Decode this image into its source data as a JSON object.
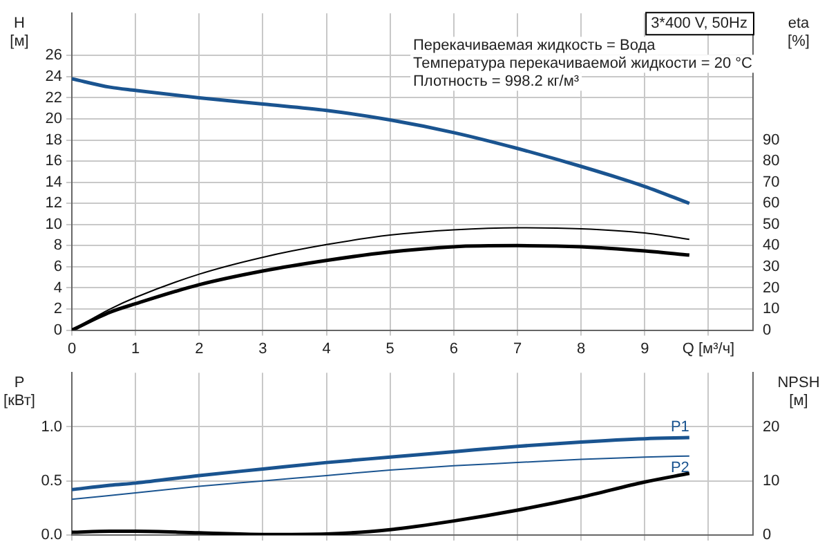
{
  "chart_data": [
    {
      "type": "line",
      "ylabel": "H [м]",
      "y2label": "eta [%]",
      "xlim": [
        0,
        10.7
      ],
      "xticks": [
        0,
        1,
        2,
        3,
        4,
        5,
        6,
        7,
        8,
        9,
        {
          "value": 10,
          "label": "Q [м³/ч]"
        }
      ],
      "ylim": [
        0,
        30
      ],
      "yticks": [
        0,
        2,
        4,
        6,
        8,
        10,
        12,
        14,
        16,
        18,
        20,
        22,
        24,
        26
      ],
      "y2lim": [
        0,
        150
      ],
      "y2ticks": [
        0,
        10,
        20,
        30,
        40,
        50,
        60,
        70,
        80,
        90
      ],
      "grid": true,
      "legend": false,
      "marker": "none",
      "line_style": "solid",
      "annotations": [
        "3*400 V, 50Hz",
        "Перекачиваемая жидкость = Вода",
        "Температура перекачиваемой жидкости = 20 °C",
        "Плотность = 998.2 кг/м³"
      ],
      "series": [
        {
          "color": "#1a5490",
          "x": [
            0,
            0.6,
            1,
            2,
            3,
            4,
            5,
            6,
            7,
            8,
            9,
            9.7
          ],
          "values": [
            23.8,
            23.0,
            22.7,
            22.0,
            21.4,
            20.8,
            19.9,
            18.7,
            17.2,
            15.5,
            13.6,
            12.0
          ]
        },
        {
          "color": "#000000",
          "axis": "y2",
          "x": [
            0,
            0.6,
            1,
            2,
            3,
            4,
            5,
            6,
            7,
            8,
            9,
            9.7
          ],
          "values": [
            0,
            10,
            15.5,
            26.5,
            34.5,
            40.5,
            45,
            47.5,
            48.5,
            48,
            46,
            43
          ]
        },
        {
          "color": "#000000",
          "axis": "y2",
          "x": [
            0,
            0.6,
            1,
            2,
            3,
            4,
            5,
            6,
            7,
            8,
            9,
            9.7
          ],
          "values": [
            0,
            8.5,
            12.5,
            21.5,
            28,
            33,
            37,
            39.5,
            40,
            39.5,
            37.5,
            35.5
          ]
        }
      ]
    },
    {
      "type": "line",
      "ylabel": "P [кВт]",
      "y2label": "NPSH [м]",
      "xlim": [
        0,
        10.7
      ],
      "xticks": [
        0,
        1,
        2,
        3,
        4,
        5,
        6,
        7,
        8,
        9,
        10
      ],
      "ylim": [
        0,
        1.5
      ],
      "yticks": [
        {
          "value": 0,
          "label": "0.0"
        },
        {
          "value": 0.5,
          "label": "0.5"
        },
        {
          "value": 1,
          "label": "1.0"
        }
      ],
      "y2lim": [
        0,
        30
      ],
      "y2ticks": [
        0,
        10,
        20
      ],
      "grid": true,
      "legend": false,
      "marker": "none",
      "line_style": "solid",
      "tick_labels": "y",
      "series": [
        {
          "name": "P1",
          "color": "#1a5490",
          "x": [
            0,
            0.6,
            1,
            2,
            3,
            4,
            5,
            6,
            7,
            8,
            9,
            9.7
          ],
          "values": [
            0.42,
            0.46,
            0.48,
            0.55,
            0.61,
            0.67,
            0.72,
            0.77,
            0.82,
            0.86,
            0.89,
            0.9
          ]
        },
        {
          "name": "P2",
          "color": "#1a5490",
          "x": [
            0,
            1,
            2,
            3,
            4,
            5,
            6,
            7,
            8,
            9,
            9.7
          ],
          "values": [
            0.33,
            0.39,
            0.45,
            0.5,
            0.55,
            0.6,
            0.64,
            0.67,
            0.7,
            0.72,
            0.73
          ]
        },
        {
          "color": "#000000",
          "axis": "y2",
          "x": [
            0,
            0.6,
            1,
            2,
            3,
            4,
            5,
            6,
            7,
            8,
            9,
            9.7
          ],
          "values": [
            0.5,
            0.7,
            0.7,
            0.4,
            0.1,
            0.2,
            1.0,
            2.6,
            4.6,
            7.0,
            9.8,
            11.4
          ]
        }
      ]
    }
  ]
}
